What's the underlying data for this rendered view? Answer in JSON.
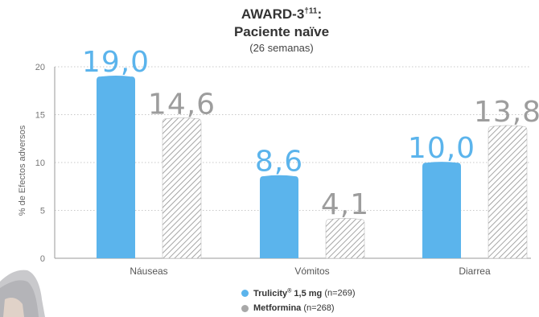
{
  "chart_data": {
    "type": "bar",
    "title": "AWARD-3",
    "title_superscript": "†11",
    "title_suffix": ":",
    "subtitle": "Paciente naïve",
    "subsubtitle": "(26 semanas)",
    "ylabel": "% de Efectos adversos",
    "xlabel": "",
    "ylim": [
      0,
      20
    ],
    "yticks": [
      0,
      5,
      10,
      15,
      20
    ],
    "grid": "dotted horizontal",
    "legend_placement": "bottom-center",
    "categories": [
      "Náuseas",
      "Vómitos",
      "Diarrea"
    ],
    "series": [
      {
        "name": "Trulicity",
        "name_mark": "®",
        "name_detail": " 1,5 mg",
        "n_label": " (n=269)",
        "values": [
          19.0,
          8.6,
          10.0
        ],
        "labels": [
          "19,0",
          "8,6",
          "10,0"
        ],
        "color": "#5bb4ec",
        "pattern": "solid"
      },
      {
        "name": "Metformina",
        "name_mark": "",
        "name_detail": "",
        "n_label": " (n=268)",
        "values": [
          14.6,
          4.1,
          13.8
        ],
        "labels": [
          "14,6",
          "4,1",
          "13,8"
        ],
        "color": "#a8a8a8",
        "pattern": "hatched"
      }
    ]
  }
}
